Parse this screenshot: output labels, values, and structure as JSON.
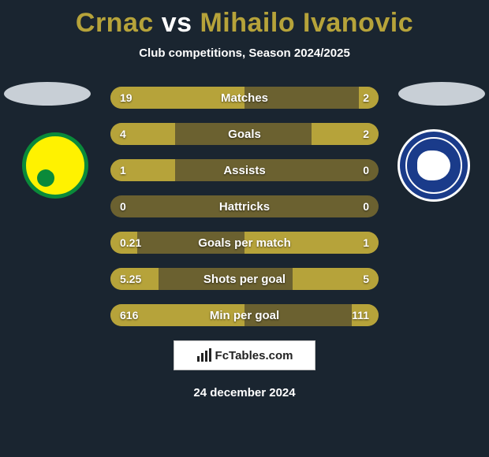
{
  "title": {
    "text": "Crnac vs Mihailo Ivanovic",
    "parts": [
      {
        "text": "Crnac",
        "color": "#b6a33a"
      },
      {
        "text": " vs ",
        "color": "#ffffff"
      },
      {
        "text": "Mihailo Ivanovic",
        "color": "#b6a33a"
      }
    ],
    "fontsize": 34
  },
  "subtitle": "Club competitions, Season 2024/2025",
  "background_color": "#1a2530",
  "left_team": {
    "ellipse_color": "#c8cfd6",
    "badge_outer": "#0a8a3a",
    "badge_inner": "#fff200"
  },
  "right_team": {
    "ellipse_color": "#c8cfd6",
    "badge_outer": "#ffffff",
    "badge_inner": "#1a3b8a"
  },
  "bars": {
    "track_color": "#6b6130",
    "left_fill": "#b6a33a",
    "right_fill": "#b6a33a",
    "text_color": "#ffffff",
    "height": 28,
    "radius": 14,
    "gap": 18,
    "rows": [
      {
        "label": "Matches",
        "left_val": "19",
        "right_val": "2",
        "left_pct": 100,
        "right_pct": 15
      },
      {
        "label": "Goals",
        "left_val": "4",
        "right_val": "2",
        "left_pct": 48,
        "right_pct": 50
      },
      {
        "label": "Assists",
        "left_val": "1",
        "right_val": "0",
        "left_pct": 48,
        "right_pct": 0
      },
      {
        "label": "Hattricks",
        "left_val": "0",
        "right_val": "0",
        "left_pct": 0,
        "right_pct": 0
      },
      {
        "label": "Goals per match",
        "left_val": "0.21",
        "right_val": "1",
        "left_pct": 20,
        "right_pct": 100
      },
      {
        "label": "Shots per goal",
        "left_val": "5.25",
        "right_val": "5",
        "left_pct": 36,
        "right_pct": 64
      },
      {
        "label": "Min per goal",
        "left_val": "616",
        "right_val": "111",
        "left_pct": 100,
        "right_pct": 20
      }
    ]
  },
  "footer_logo": "FcTables.com",
  "date": "24 december 2024"
}
